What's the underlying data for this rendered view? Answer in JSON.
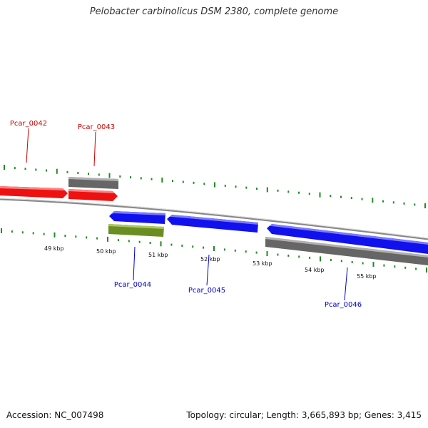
{
  "title": "Pelobacter carbinolicus DSM 2380, complete genome",
  "footer": {
    "accession": "Accession: NC_007498",
    "topology": "Topology: circular; Length: 3,665,893 bp; Genes: 3,415"
  },
  "colors": {
    "forward_gene": "#ee1111",
    "reverse_gene": "#1111ee",
    "rna_feature": "#6b8e23",
    "gene_box": "#666666",
    "backbone": "#888888",
    "tick": "#228b22",
    "label_forward": "#cc0000",
    "label_reverse": "#0000cc"
  },
  "ruler": {
    "ticks": [
      "49 kbp",
      "50 kbp",
      "51 kbp",
      "52 kbp",
      "53 kbp",
      "54 kbp",
      "55 kbp"
    ]
  },
  "genes": {
    "forward": [
      "Pcar_0042",
      "Pcar_0043"
    ],
    "reverse": [
      "Pcar_0044",
      "Pcar_0045",
      "Pcar_0046"
    ]
  }
}
